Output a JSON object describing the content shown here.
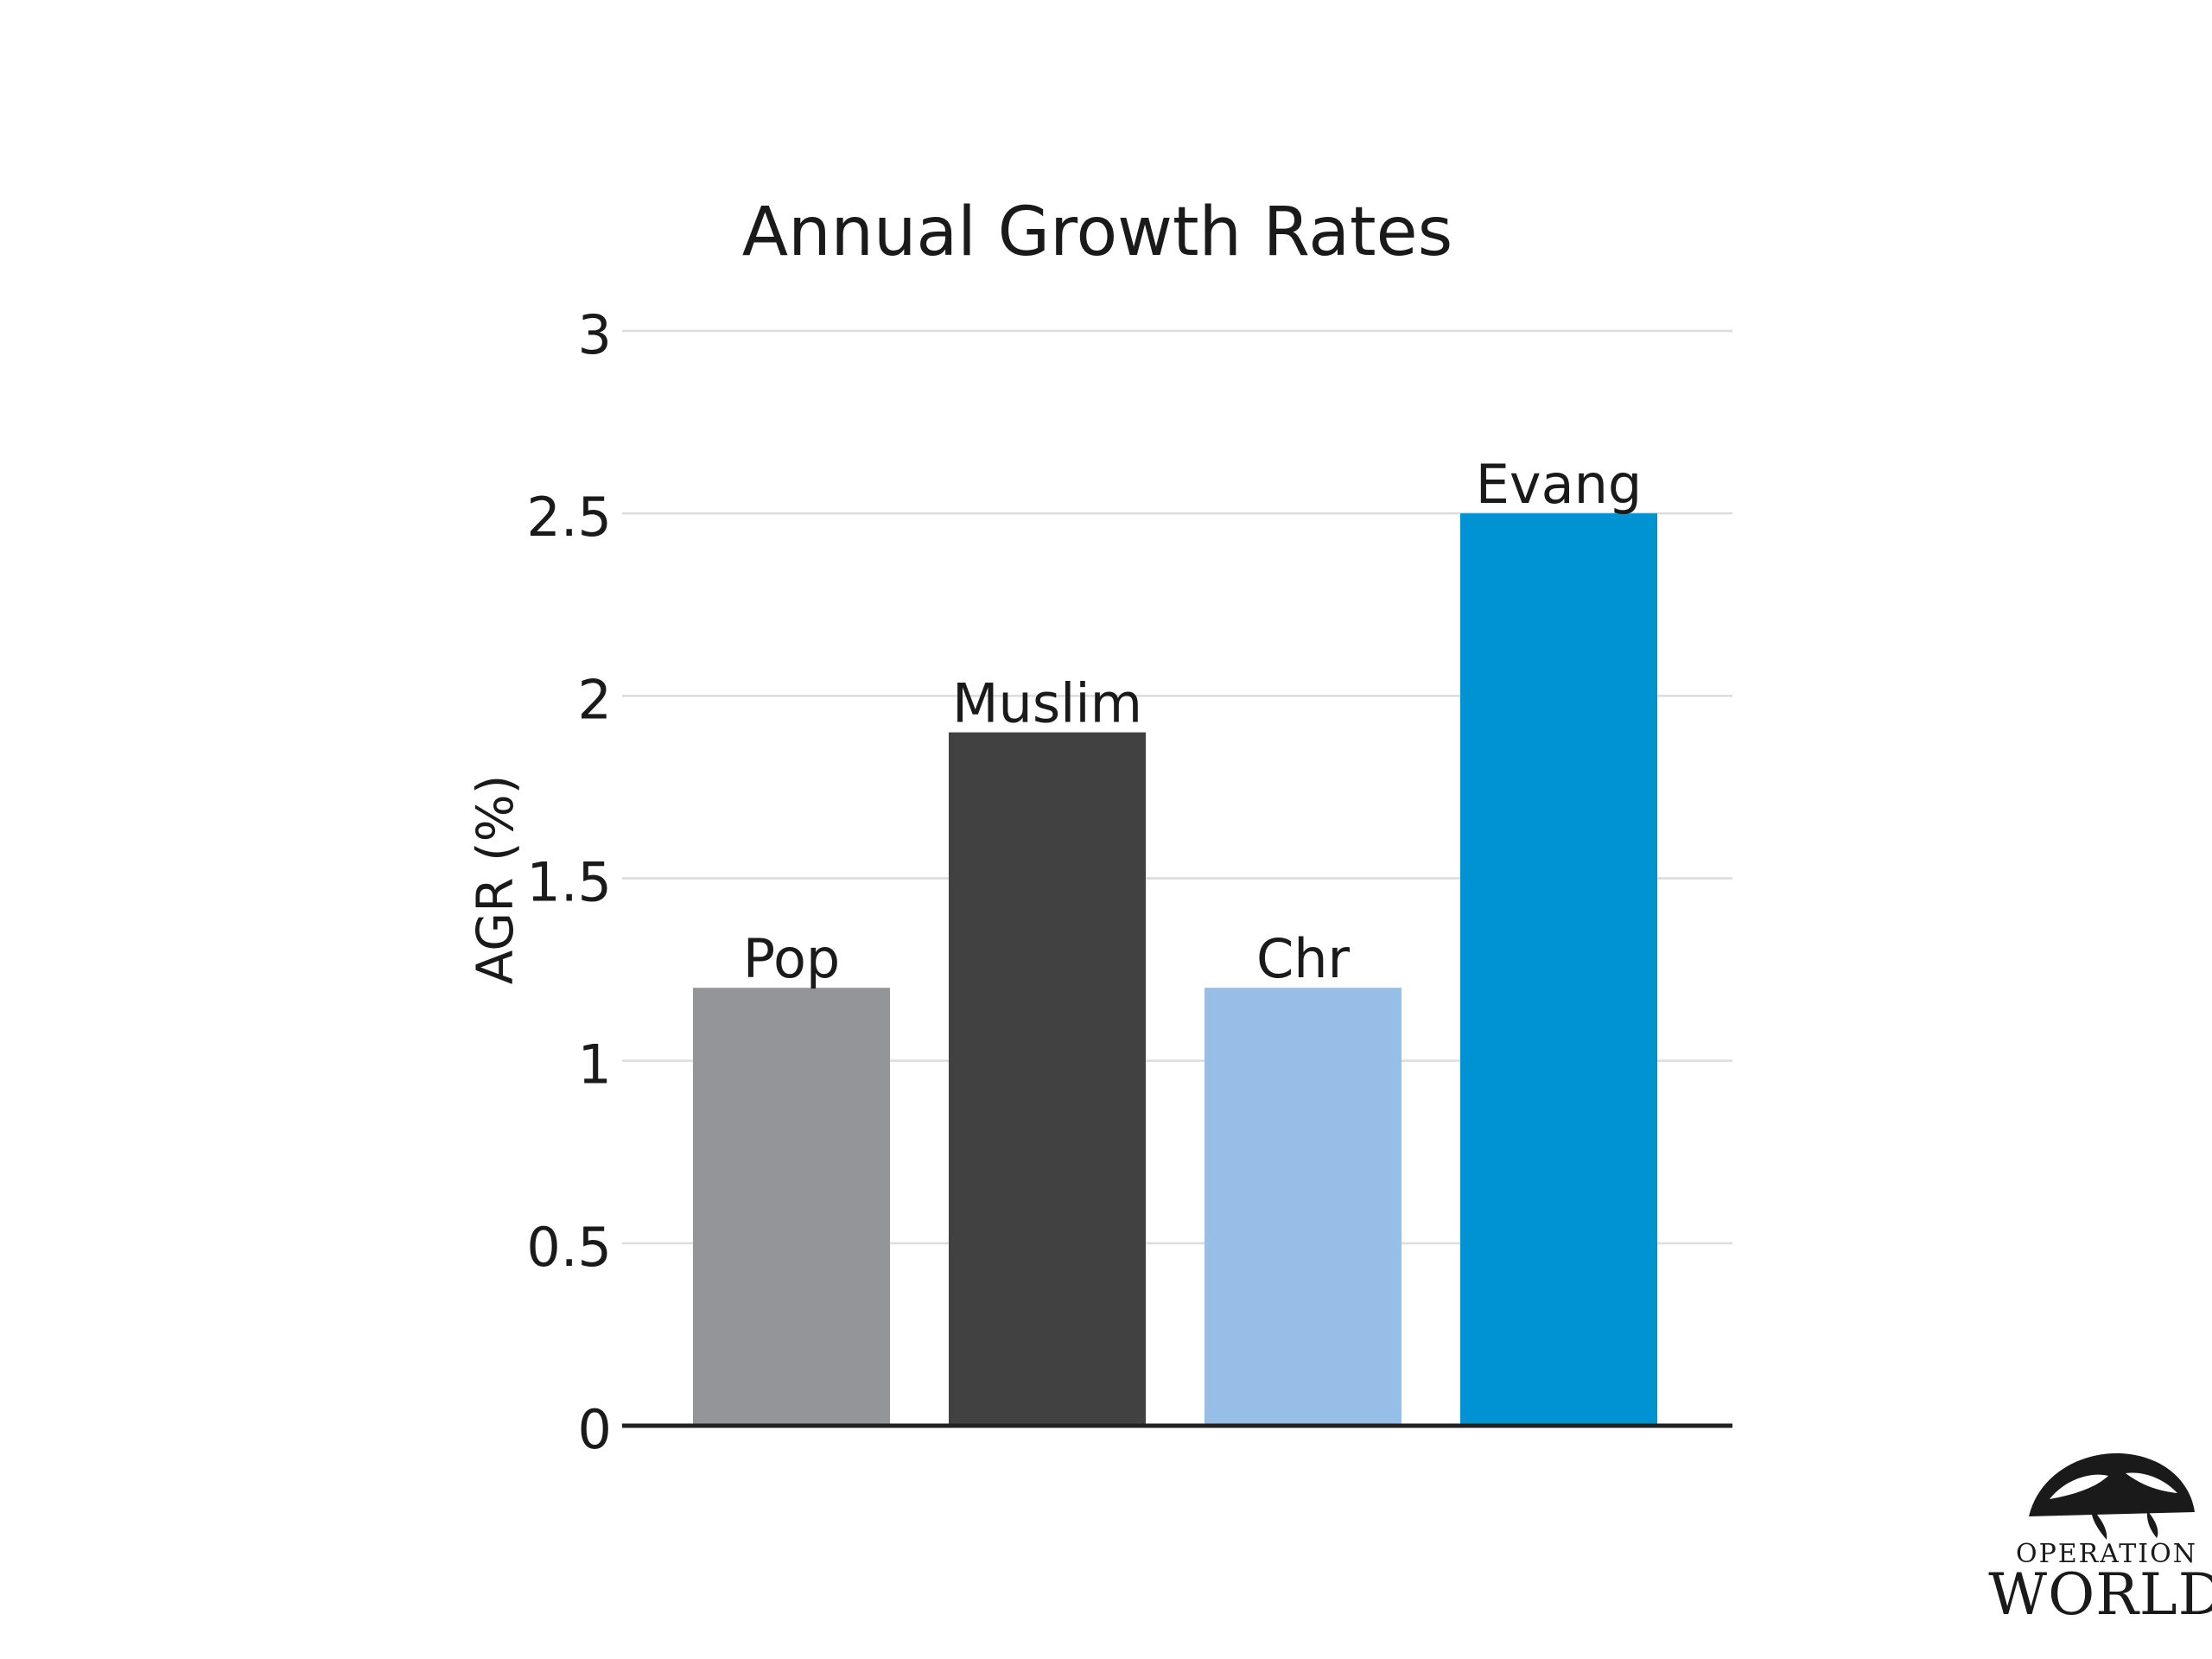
{
  "chart_data": {
    "type": "bar",
    "title": "Annual Growth Rates",
    "xlabel": "",
    "ylabel": "AGR (%)",
    "ylim": [
      0,
      3
    ],
    "yticks": [
      "0",
      "0.5",
      "1",
      "1.5",
      "2",
      "2.5",
      "3"
    ],
    "categories": [
      "Pop",
      "Muslim",
      "Chr",
      "Evang"
    ],
    "values": [
      1.2,
      1.9,
      1.2,
      2.5
    ],
    "colors": [
      "#939598",
      "#414142",
      "#97bee6",
      "#0093d3"
    ],
    "grid": true,
    "legend": "none"
  },
  "logo": {
    "line1": "OPERATION",
    "line2": "WORLD"
  }
}
